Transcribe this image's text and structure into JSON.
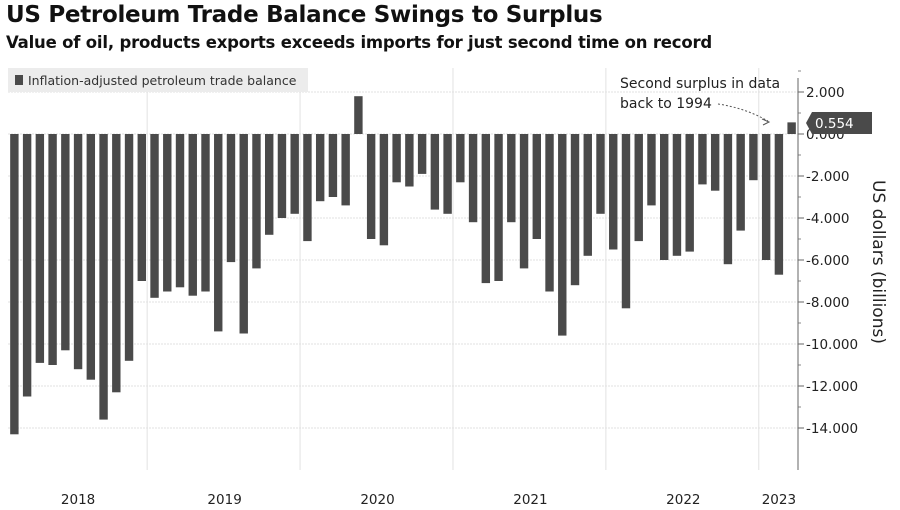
{
  "title": "US Petroleum Trade Balance Swings to Surplus",
  "subtitle": "Value of oil, products exports exceeds imports for just second time on record",
  "chart_data": {
    "type": "bar",
    "series": [
      {
        "name": "Inflation-adjusted petroleum trade balance",
        "values": [
          -14.3,
          -12.5,
          -10.9,
          -11.0,
          -10.3,
          -11.2,
          -11.7,
          -13.6,
          -12.3,
          -10.8,
          -7.0,
          -7.8,
          -7.5,
          -7.3,
          -7.7,
          -7.5,
          -9.4,
          -6.1,
          -9.5,
          -6.4,
          -4.8,
          -4.0,
          -3.8,
          -5.1,
          -3.2,
          -3.0,
          -3.4,
          1.8,
          -5.0,
          -5.3,
          -2.3,
          -2.5,
          -1.9,
          -3.6,
          -3.8,
          -2.3,
          -4.2,
          -7.1,
          -7.0,
          -4.2,
          -6.4,
          -5.0,
          -7.5,
          -9.6,
          -7.2,
          -5.8,
          -3.8,
          -5.5,
          -8.3,
          -5.1,
          -3.4,
          -6.0,
          -5.8,
          -5.6,
          -2.4,
          -2.7,
          -6.2,
          -4.6,
          -2.2,
          -6.0,
          -6.7,
          0.554
        ]
      }
    ],
    "year_labels": [
      {
        "label": "2018",
        "start": 0,
        "end": 11
      },
      {
        "label": "2019",
        "start": 11,
        "end": 23
      },
      {
        "label": "2020",
        "start": 23,
        "end": 35
      },
      {
        "label": "2021",
        "start": 35,
        "end": 47
      },
      {
        "label": "2022",
        "start": 47,
        "end": 59
      },
      {
        "label": "2023",
        "start": 59,
        "end": 62
      }
    ],
    "yticks": [
      "2.000",
      "0.000",
      "-2.000",
      "-4.000",
      "-6.000",
      "-8.000",
      "-10.000",
      "-12.000",
      "-14.000"
    ],
    "ytick_values": [
      2,
      0,
      -2,
      -4,
      -6,
      -8,
      -10,
      -12,
      -14
    ],
    "ylim": [
      -16,
      3
    ],
    "ylabel": "US dollars (billions)",
    "last_value_label": "0.554",
    "annotation": [
      "Second surplus in data",
      "back to 1994"
    ],
    "legend_placement": "top-left",
    "grid": true,
    "bar_color": "#4a4a4a"
  }
}
